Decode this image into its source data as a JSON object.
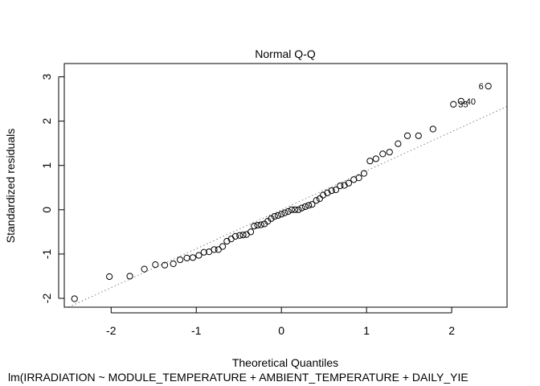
{
  "chart_data": {
    "type": "scatter",
    "title": "Normal Q-Q",
    "xlabel": "Theoretical Quantiles",
    "ylabel": "Standardized residuals",
    "subtitle": "lm(IRRADIATION ~ MODULE_TEMPERATURE + AMBIENT_TEMPERATURE + DAILY_YIE",
    "xlim": [
      -2.55,
      2.65
    ],
    "ylim": [
      -2.2,
      3.3
    ],
    "xticks": [
      "-2",
      "-1",
      "0",
      "1",
      "2"
    ],
    "yticks": [
      "-2",
      "-1",
      "0",
      "1",
      "2",
      "3"
    ],
    "xtick_values": [
      -2,
      -1,
      0,
      1,
      2
    ],
    "ytick_values": [
      -2,
      -1,
      0,
      1,
      2,
      3
    ],
    "reference_line": {
      "intercept": 0,
      "slope": 0.88,
      "style": "dotted",
      "color": "#808080"
    },
    "points": [
      [
        -2.43,
        -2.01
      ],
      [
        -2.02,
        -1.51
      ],
      [
        -1.78,
        -1.5
      ],
      [
        -1.61,
        -1.34
      ],
      [
        -1.48,
        -1.24
      ],
      [
        -1.37,
        -1.25
      ],
      [
        -1.27,
        -1.22
      ],
      [
        -1.19,
        -1.13
      ],
      [
        -1.11,
        -1.09
      ],
      [
        -1.04,
        -1.08
      ],
      [
        -0.97,
        -1.03
      ],
      [
        -0.91,
        -0.96
      ],
      [
        -0.85,
        -0.95
      ],
      [
        -0.79,
        -0.9
      ],
      [
        -0.74,
        -0.9
      ],
      [
        -0.69,
        -0.83
      ],
      [
        -0.64,
        -0.71
      ],
      [
        -0.59,
        -0.66
      ],
      [
        -0.54,
        -0.6
      ],
      [
        -0.49,
        -0.58
      ],
      [
        -0.45,
        -0.57
      ],
      [
        -0.41,
        -0.56
      ],
      [
        -0.36,
        -0.5
      ],
      [
        -0.32,
        -0.37
      ],
      [
        -0.28,
        -0.35
      ],
      [
        -0.24,
        -0.34
      ],
      [
        -0.2,
        -0.32
      ],
      [
        -0.16,
        -0.26
      ],
      [
        -0.12,
        -0.2
      ],
      [
        -0.08,
        -0.15
      ],
      [
        -0.04,
        -0.13
      ],
      [
        0.0,
        -0.1
      ],
      [
        0.04,
        -0.07
      ],
      [
        0.08,
        -0.04
      ],
      [
        0.12,
        0.0
      ],
      [
        0.16,
        0.0
      ],
      [
        0.2,
        0.0
      ],
      [
        0.24,
        0.04
      ],
      [
        0.28,
        0.07
      ],
      [
        0.32,
        0.1
      ],
      [
        0.36,
        0.12
      ],
      [
        0.41,
        0.21
      ],
      [
        0.45,
        0.25
      ],
      [
        0.49,
        0.33
      ],
      [
        0.54,
        0.38
      ],
      [
        0.59,
        0.43
      ],
      [
        0.64,
        0.45
      ],
      [
        0.69,
        0.54
      ],
      [
        0.74,
        0.55
      ],
      [
        0.79,
        0.6
      ],
      [
        0.85,
        0.68
      ],
      [
        0.91,
        0.72
      ],
      [
        0.97,
        0.82
      ],
      [
        1.04,
        1.1
      ],
      [
        1.11,
        1.15
      ],
      [
        1.19,
        1.26
      ],
      [
        1.27,
        1.3
      ],
      [
        1.37,
        1.49
      ],
      [
        1.48,
        1.67
      ],
      [
        1.61,
        1.67
      ],
      [
        1.78,
        1.82
      ],
      [
        2.02,
        2.38
      ],
      [
        2.11,
        2.45
      ],
      [
        2.43,
        2.79
      ]
    ],
    "point_labels": [
      {
        "label": "35",
        "x": 2.02,
        "y": 2.38
      },
      {
        "label": "40",
        "x": 2.11,
        "y": 2.45
      },
      {
        "label": "6",
        "x": 2.43,
        "y": 2.79
      }
    ]
  }
}
